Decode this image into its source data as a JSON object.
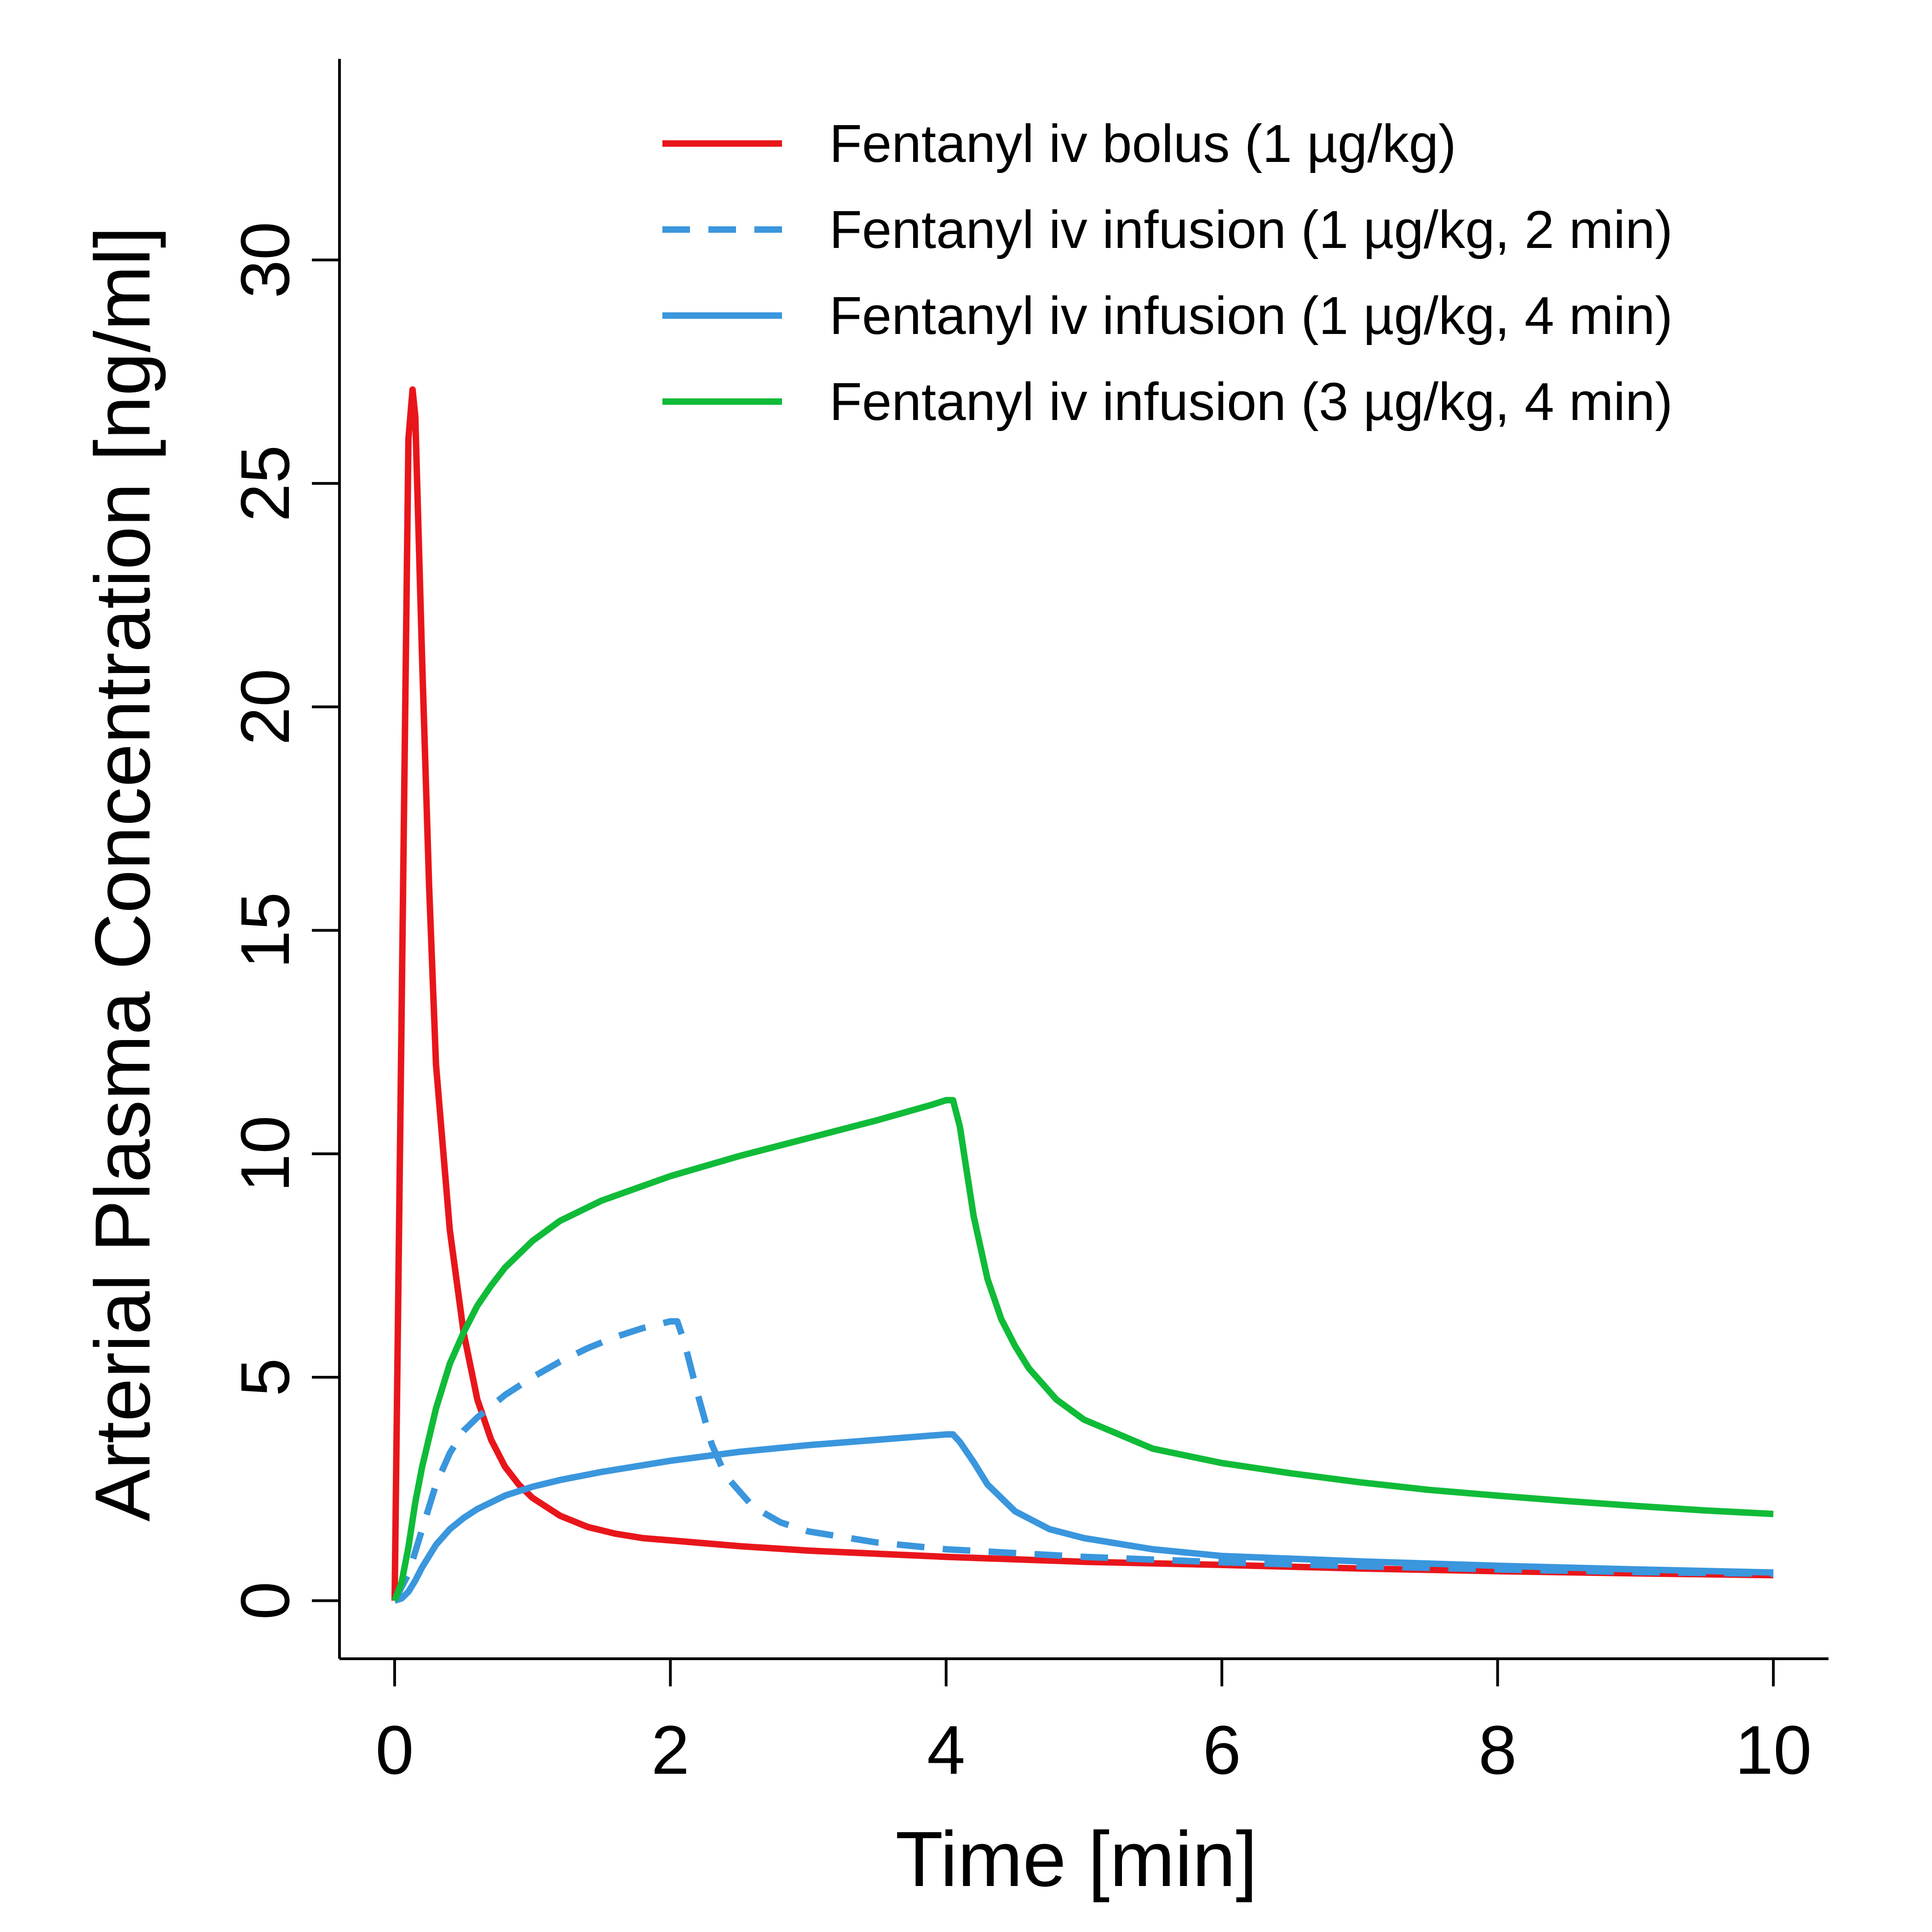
{
  "chart_data": {
    "type": "line",
    "title": "",
    "xlabel": "Time [min]",
    "ylabel": "Arterial Plasma Concentration [ng/ml]",
    "xlim": [
      -0.4,
      10.4
    ],
    "ylim": [
      -1.3,
      34.5
    ],
    "xticks": [
      0,
      2,
      4,
      6,
      8,
      10
    ],
    "yticks": [
      0,
      5,
      10,
      15,
      20,
      25,
      30
    ],
    "xtick_labels": [
      "0",
      "2",
      "4",
      "6",
      "8",
      "10"
    ],
    "ytick_labels": [
      "0",
      "5",
      "10",
      "15",
      "20",
      "25",
      "30"
    ],
    "legend_position": "top-right",
    "series": [
      {
        "name": "Fentanyl iv bolus (1 µg/kg)",
        "color": "#e8161b",
        "dash": "solid",
        "x": [
          0,
          0.05,
          0.1,
          0.13,
          0.15,
          0.2,
          0.25,
          0.3,
          0.4,
          0.5,
          0.6,
          0.7,
          0.8,
          0.9,
          1.0,
          1.2,
          1.4,
          1.6,
          1.8,
          2.0,
          2.5,
          3.0,
          3.5,
          4.0,
          5.0,
          6.0,
          7.0,
          8.0,
          9.0,
          10.0
        ],
        "y": [
          0,
          13,
          26,
          27.1,
          26.5,
          21,
          16,
          12,
          8.3,
          6.0,
          4.5,
          3.6,
          3.0,
          2.6,
          2.3,
          1.9,
          1.65,
          1.5,
          1.4,
          1.35,
          1.22,
          1.12,
          1.05,
          0.98,
          0.87,
          0.8,
          0.72,
          0.66,
          0.61,
          0.57
        ]
      },
      {
        "name": "Fentanyl iv infusion (1 µg/kg, 2 min)",
        "color": "#3a96dd",
        "dash": "dashed",
        "x": [
          0,
          0.1,
          0.2,
          0.3,
          0.4,
          0.5,
          0.6,
          0.8,
          1.0,
          1.2,
          1.4,
          1.6,
          1.8,
          2.0,
          2.05,
          2.1,
          2.2,
          2.3,
          2.4,
          2.6,
          2.8,
          3.0,
          3.5,
          4.0,
          5.0,
          6.0,
          7.0,
          8.0,
          9.0,
          10.0
        ],
        "y": [
          0,
          0.6,
          1.6,
          2.6,
          3.3,
          3.8,
          4.1,
          4.6,
          5.0,
          5.35,
          5.65,
          5.9,
          6.1,
          6.25,
          6.25,
          5.8,
          4.6,
          3.5,
          2.8,
          2.1,
          1.75,
          1.55,
          1.3,
          1.15,
          0.98,
          0.86,
          0.77,
          0.7,
          0.64,
          0.6
        ]
      },
      {
        "name": "Fentanyl iv infusion (1 µg/kg, 4 min)",
        "color": "#3a96dd",
        "dash": "solid",
        "x": [
          0,
          0.05,
          0.1,
          0.15,
          0.2,
          0.3,
          0.4,
          0.5,
          0.6,
          0.8,
          1.0,
          1.2,
          1.5,
          2.0,
          2.5,
          3.0,
          3.5,
          4.0,
          4.05,
          4.1,
          4.2,
          4.3,
          4.5,
          4.75,
          5.0,
          5.5,
          6.0,
          7.0,
          8.0,
          9.0,
          10.0
        ],
        "y": [
          0,
          0.05,
          0.2,
          0.45,
          0.75,
          1.25,
          1.6,
          1.85,
          2.05,
          2.35,
          2.55,
          2.7,
          2.88,
          3.13,
          3.33,
          3.48,
          3.6,
          3.72,
          3.72,
          3.55,
          3.1,
          2.6,
          2.0,
          1.6,
          1.4,
          1.15,
          1.0,
          0.88,
          0.78,
          0.7,
          0.63
        ]
      },
      {
        "name": "Fentanyl iv infusion (3 µg/kg, 4 min)",
        "color": "#10bb38",
        "dash": "solid",
        "x": [
          0,
          0.05,
          0.1,
          0.15,
          0.2,
          0.3,
          0.4,
          0.5,
          0.6,
          0.7,
          0.8,
          1.0,
          1.2,
          1.5,
          2.0,
          2.5,
          3.0,
          3.5,
          3.9,
          4.0,
          4.05,
          4.1,
          4.15,
          4.2,
          4.3,
          4.4,
          4.5,
          4.6,
          4.8,
          5.0,
          5.5,
          6.0,
          6.5,
          7.0,
          7.5,
          8.0,
          8.5,
          9.0,
          9.5,
          10.0
        ],
        "y": [
          0,
          0.4,
          1.2,
          2.2,
          3.0,
          4.3,
          5.3,
          6.0,
          6.6,
          7.05,
          7.45,
          8.05,
          8.5,
          8.95,
          9.5,
          9.95,
          10.35,
          10.75,
          11.1,
          11.2,
          11.2,
          10.6,
          9.6,
          8.6,
          7.2,
          6.3,
          5.7,
          5.2,
          4.5,
          4.05,
          3.4,
          3.08,
          2.85,
          2.65,
          2.48,
          2.35,
          2.23,
          2.12,
          2.02,
          1.94
        ]
      }
    ]
  }
}
